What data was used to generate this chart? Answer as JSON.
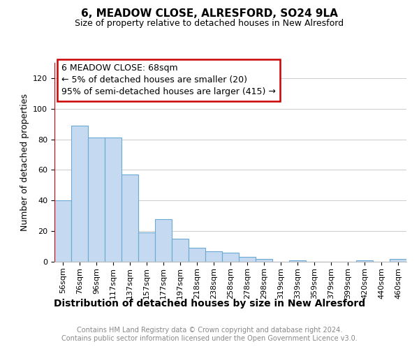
{
  "title1": "6, MEADOW CLOSE, ALRESFORD, SO24 9LA",
  "title2": "Size of property relative to detached houses in New Alresford",
  "xlabel": "Distribution of detached houses by size in New Alresford",
  "ylabel": "Number of detached properties",
  "categories": [
    "56sqm",
    "76sqm",
    "96sqm",
    "117sqm",
    "137sqm",
    "157sqm",
    "177sqm",
    "197sqm",
    "218sqm",
    "238sqm",
    "258sqm",
    "278sqm",
    "298sqm",
    "319sqm",
    "339sqm",
    "359sqm",
    "379sqm",
    "399sqm",
    "420sqm",
    "440sqm",
    "460sqm"
  ],
  "values": [
    40,
    89,
    81,
    81,
    57,
    19,
    28,
    15,
    9,
    7,
    6,
    3,
    2,
    0,
    1,
    0,
    0,
    0,
    1,
    0,
    2
  ],
  "bar_color": "#c5d9f0",
  "bar_edge_color": "#6aaad4",
  "ylim": [
    0,
    130
  ],
  "yticks": [
    0,
    20,
    40,
    60,
    80,
    100,
    120
  ],
  "red_line_color": "#cc0000",
  "annotation_text_line1": "6 MEADOW CLOSE: 68sqm",
  "annotation_text_line2": "← 5% of detached houses are smaller (20)",
  "annotation_text_line3": "95% of semi-detached houses are larger (415) →",
  "annotation_box_facecolor": "white",
  "annotation_box_edgecolor": "#cc0000",
  "footer_text": "Contains HM Land Registry data © Crown copyright and database right 2024.\nContains public sector information licensed under the Open Government Licence v3.0.",
  "footer_color": "#888888",
  "grid_color": "#cccccc",
  "background_color": "white",
  "title1_fontsize": 11,
  "title2_fontsize": 9,
  "xlabel_fontsize": 10,
  "ylabel_fontsize": 9,
  "tick_fontsize": 8,
  "footer_fontsize": 7,
  "annot_fontsize": 9
}
